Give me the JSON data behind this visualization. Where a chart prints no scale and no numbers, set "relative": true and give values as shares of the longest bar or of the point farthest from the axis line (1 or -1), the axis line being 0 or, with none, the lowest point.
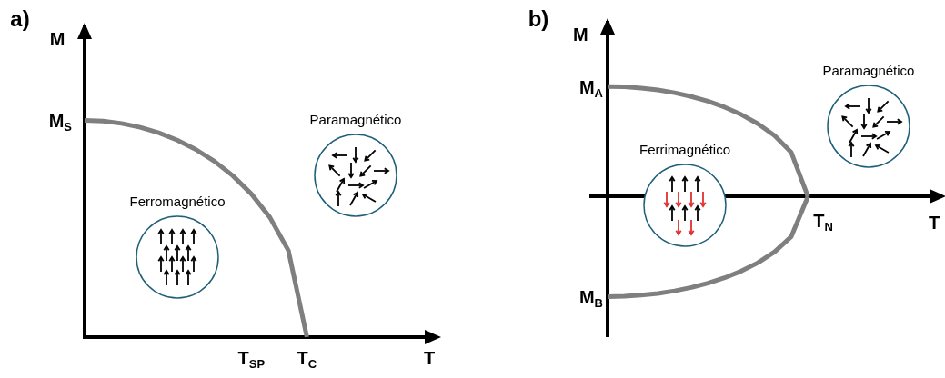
{
  "chart_data": [
    {
      "type": "line",
      "title": "a)",
      "xlabel": "T",
      "ylabel": "M",
      "relative": true,
      "marker": "none",
      "categories": [
        null,
        null,
        null,
        null,
        null,
        null,
        null,
        null,
        null,
        "T$_{SP}$",
        null,
        null,
        "T$_{C}$",
        null,
        null,
        null,
        null,
        null,
        null,
        null
      ],
      "series": [
        {
          "color": "#7f7f7f",
          "values": [
            1,
            0.997,
            0.986,
            0.968,
            0.943,
            0.909,
            0.866,
            0.812,
            0.745,
            0.661,
            0.553,
            0.4,
            0,
            null,
            null,
            null,
            null,
            null,
            null,
            null
          ]
        }
      ],
      "annotations": [
        "Ferromagnético",
        "Paramagnético",
        "M$_{S}$"
      ]
    },
    {
      "type": "line",
      "title": "b)",
      "xlabel": "T",
      "ylabel": "M",
      "relative": true,
      "marker": "none",
      "categories": [
        null,
        null,
        null,
        null,
        null,
        null,
        null,
        null,
        null,
        null,
        null,
        null,
        null,
        null,
        null,
        null,
        null,
        null,
        null,
        null,
        null,
        null
      ],
      "series": [
        {
          "color": "#7f7f7f",
          "values": [
            null,
            1,
            0.997,
            0.986,
            0.968,
            0.943,
            0.909,
            0.866,
            0.812,
            0.745,
            0.661,
            0.553,
            0.4,
            0,
            null,
            null,
            null,
            null,
            null,
            null,
            null,
            null
          ]
        },
        {
          "color": "#7f7f7f",
          "values": [
            null,
            -0.91,
            -0.907,
            -0.897,
            -0.881,
            -0.858,
            -0.827,
            -0.788,
            -0.739,
            -0.678,
            -0.602,
            -0.503,
            -0.364,
            0,
            null,
            null,
            null,
            null,
            null,
            null,
            null,
            null
          ]
        }
      ],
      "annotations": [
        "Ferrimagnético",
        "Paramagnético",
        "M$_{A}$",
        "M$_{B}$",
        "T$_{N}$"
      ]
    }
  ]
}
